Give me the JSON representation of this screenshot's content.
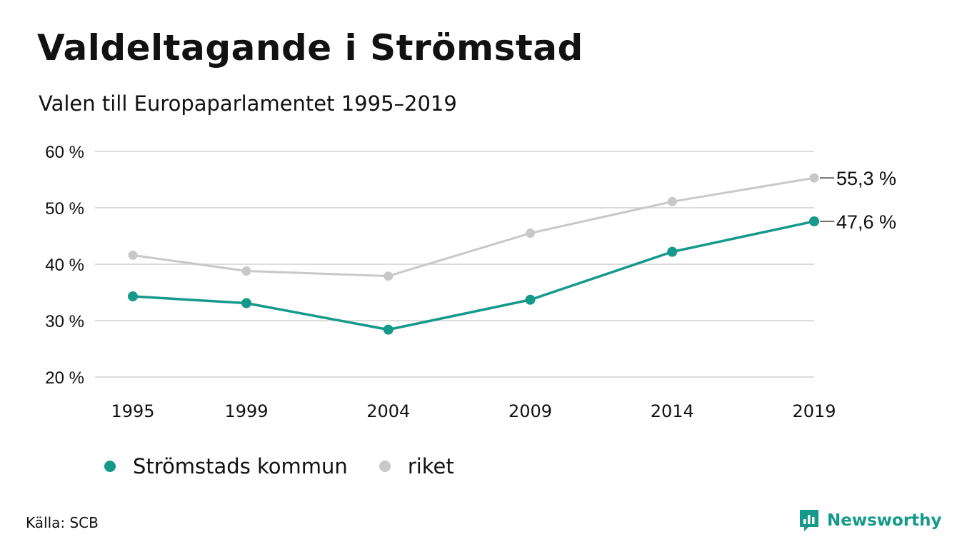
{
  "header": {
    "title": "Valdeltagande i Strömstad",
    "subtitle": "Valen till Europaparlamentet 1995–2019"
  },
  "chart_data": {
    "type": "line",
    "title": "Valdeltagande i Strömstad",
    "subtitle": "Valen till Europaparlamentet 1995–2019",
    "xlabel": "",
    "ylabel": "",
    "categories": [
      "1995",
      "1999",
      "2004",
      "2009",
      "2014",
      "2019"
    ],
    "y_ticks": [
      20,
      30,
      40,
      50,
      60
    ],
    "y_tick_labels": [
      "20 %",
      "30 %",
      "40 %",
      "50 %",
      "60 %"
    ],
    "ylim": [
      20,
      60
    ],
    "grid": "horizontal",
    "legend_position": "bottom",
    "series": [
      {
        "name": "Strömstads kommun",
        "color": "#14998a",
        "values": [
          34.3,
          33.1,
          28.4,
          33.7,
          42.2,
          47.6
        ],
        "end_label": "47,6 %"
      },
      {
        "name": "riket",
        "color": "#c8c8c8",
        "values": [
          41.6,
          38.8,
          37.9,
          45.5,
          51.1,
          55.3
        ],
        "end_label": "55,3 %"
      }
    ]
  },
  "footer": {
    "source": "Källa: SCB",
    "brand": "Newsworthy",
    "brand_color": "#14998a",
    "brand_icon": "bar-chart-speech-icon"
  }
}
